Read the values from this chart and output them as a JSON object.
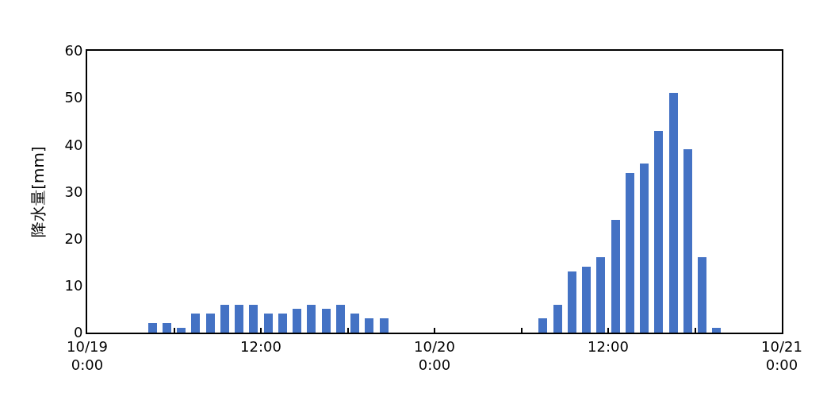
{
  "chart_data": {
    "type": "bar",
    "ylabel": "降水量[mm]",
    "x": [
      "--10-19T04:30",
      "--10-19T05:30",
      "--10-19T06:30",
      "--10-19T07:30",
      "--10-19T08:30",
      "--10-19T09:30",
      "--10-19T10:30",
      "--10-19T11:30",
      "--10-19T12:30",
      "--10-19T13:30",
      "--10-19T14:30",
      "--10-19T15:30",
      "--10-19T16:30",
      "--10-19T17:30",
      "--10-19T18:30",
      "--10-19T19:30",
      "--10-19T20:30",
      "--10-20T07:30",
      "--10-20T08:30",
      "--10-20T09:30",
      "--10-20T10:30",
      "--10-20T11:30",
      "--10-20T12:30",
      "--10-20T13:30",
      "--10-20T14:30",
      "--10-20T15:30",
      "--10-20T16:30",
      "--10-20T17:30",
      "--10-20T18:30",
      "--10-20T19:30"
    ],
    "values": [
      2,
      2,
      1,
      4,
      4,
      6,
      6,
      6,
      4,
      4,
      5,
      6,
      5,
      6,
      4,
      3,
      3,
      3,
      6,
      13,
      14,
      16,
      24,
      34,
      36,
      43,
      51,
      39,
      16,
      1
    ],
    "color": "#4472c4",
    "xlim": [
      "--10-19T00:00",
      "--10-21T00:00"
    ],
    "xticks": [
      {
        "value": "--10-19T00:00",
        "label": "10/19\n0:00"
      },
      {
        "value": "--10-19T06:00",
        "label": null
      },
      {
        "value": "--10-19T12:00",
        "label": "12:00"
      },
      {
        "value": "--10-19T18:00",
        "label": null
      },
      {
        "value": "--10-20T00:00",
        "label": "10/20\n0:00"
      },
      {
        "value": "--10-20T06:00",
        "label": null
      },
      {
        "value": "--10-20T12:00",
        "label": "12:00"
      },
      {
        "value": "--10-20T18:00",
        "label": null
      },
      {
        "value": "--10-21T00:00",
        "label": "10/21\n0:00"
      }
    ],
    "ylim": [
      0,
      60
    ],
    "yticks": [
      0,
      10,
      20,
      30,
      40,
      50,
      60
    ]
  }
}
